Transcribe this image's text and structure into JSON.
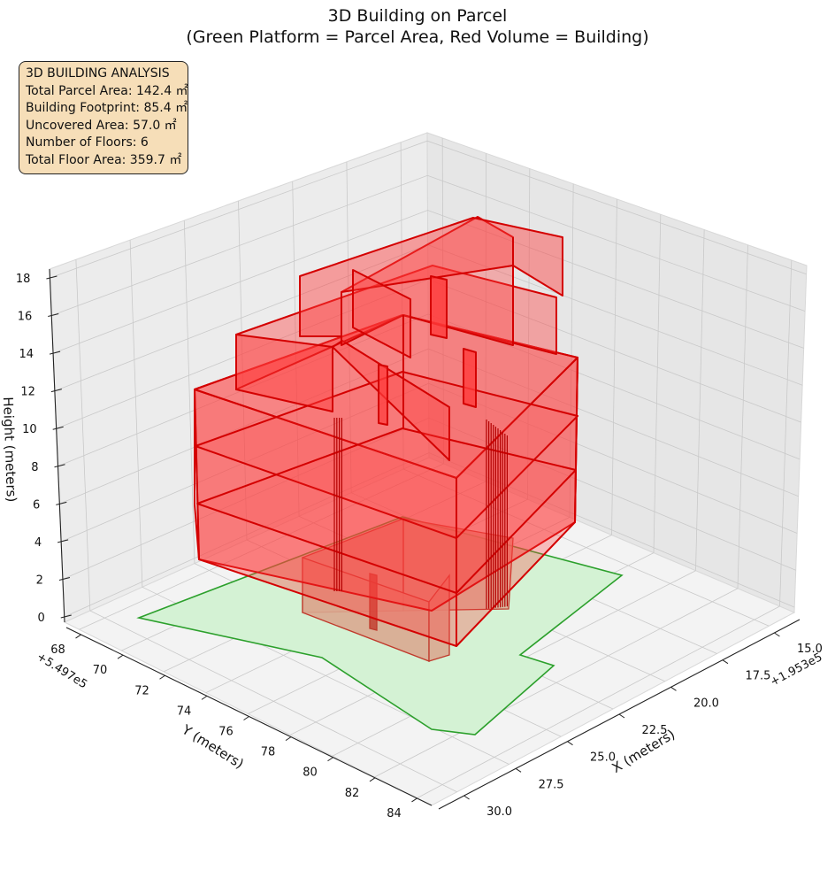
{
  "chart_data": {
    "type": "3d-polygons",
    "title": [
      "3D Building on Parcel",
      "(Green Platform = Parcel Area, Red Volume = Building)"
    ],
    "xlabel": "X (meters)",
    "ylabel": "Y (meters)",
    "zlabel": "Height (meters)",
    "x_offset_label": "+1.953e5",
    "y_offset_label": "+5.497e5",
    "x_ticks": [
      "15.0",
      "17.5",
      "20.0",
      "22.5",
      "25.0",
      "27.5",
      "30.0"
    ],
    "y_ticks": [
      "68",
      "70",
      "72",
      "74",
      "76",
      "78",
      "80",
      "82",
      "84"
    ],
    "z_ticks": [
      "0",
      "2",
      "4",
      "6",
      "8",
      "10",
      "12",
      "14",
      "16",
      "18"
    ],
    "grid": true,
    "colors": {
      "parcel_fill": "#d4f2d4",
      "parcel_edge": "#2ca02c",
      "building_fill": "#ff3b3b",
      "building_edge": "#d40000",
      "base_fill": "#d9a890",
      "base_edge": "#c0392b"
    },
    "info_box": {
      "lines": [
        "3D BUILDING ANALYSIS",
        "Total Parcel Area: 142.4 ㎡",
        "Building Footprint: 85.4 ㎡",
        "Uncovered Area: 57.0 ㎡",
        "Number of Floors: 6",
        "Total Floor Area: 359.7 ㎡"
      ],
      "background": "#f6deb8"
    }
  }
}
